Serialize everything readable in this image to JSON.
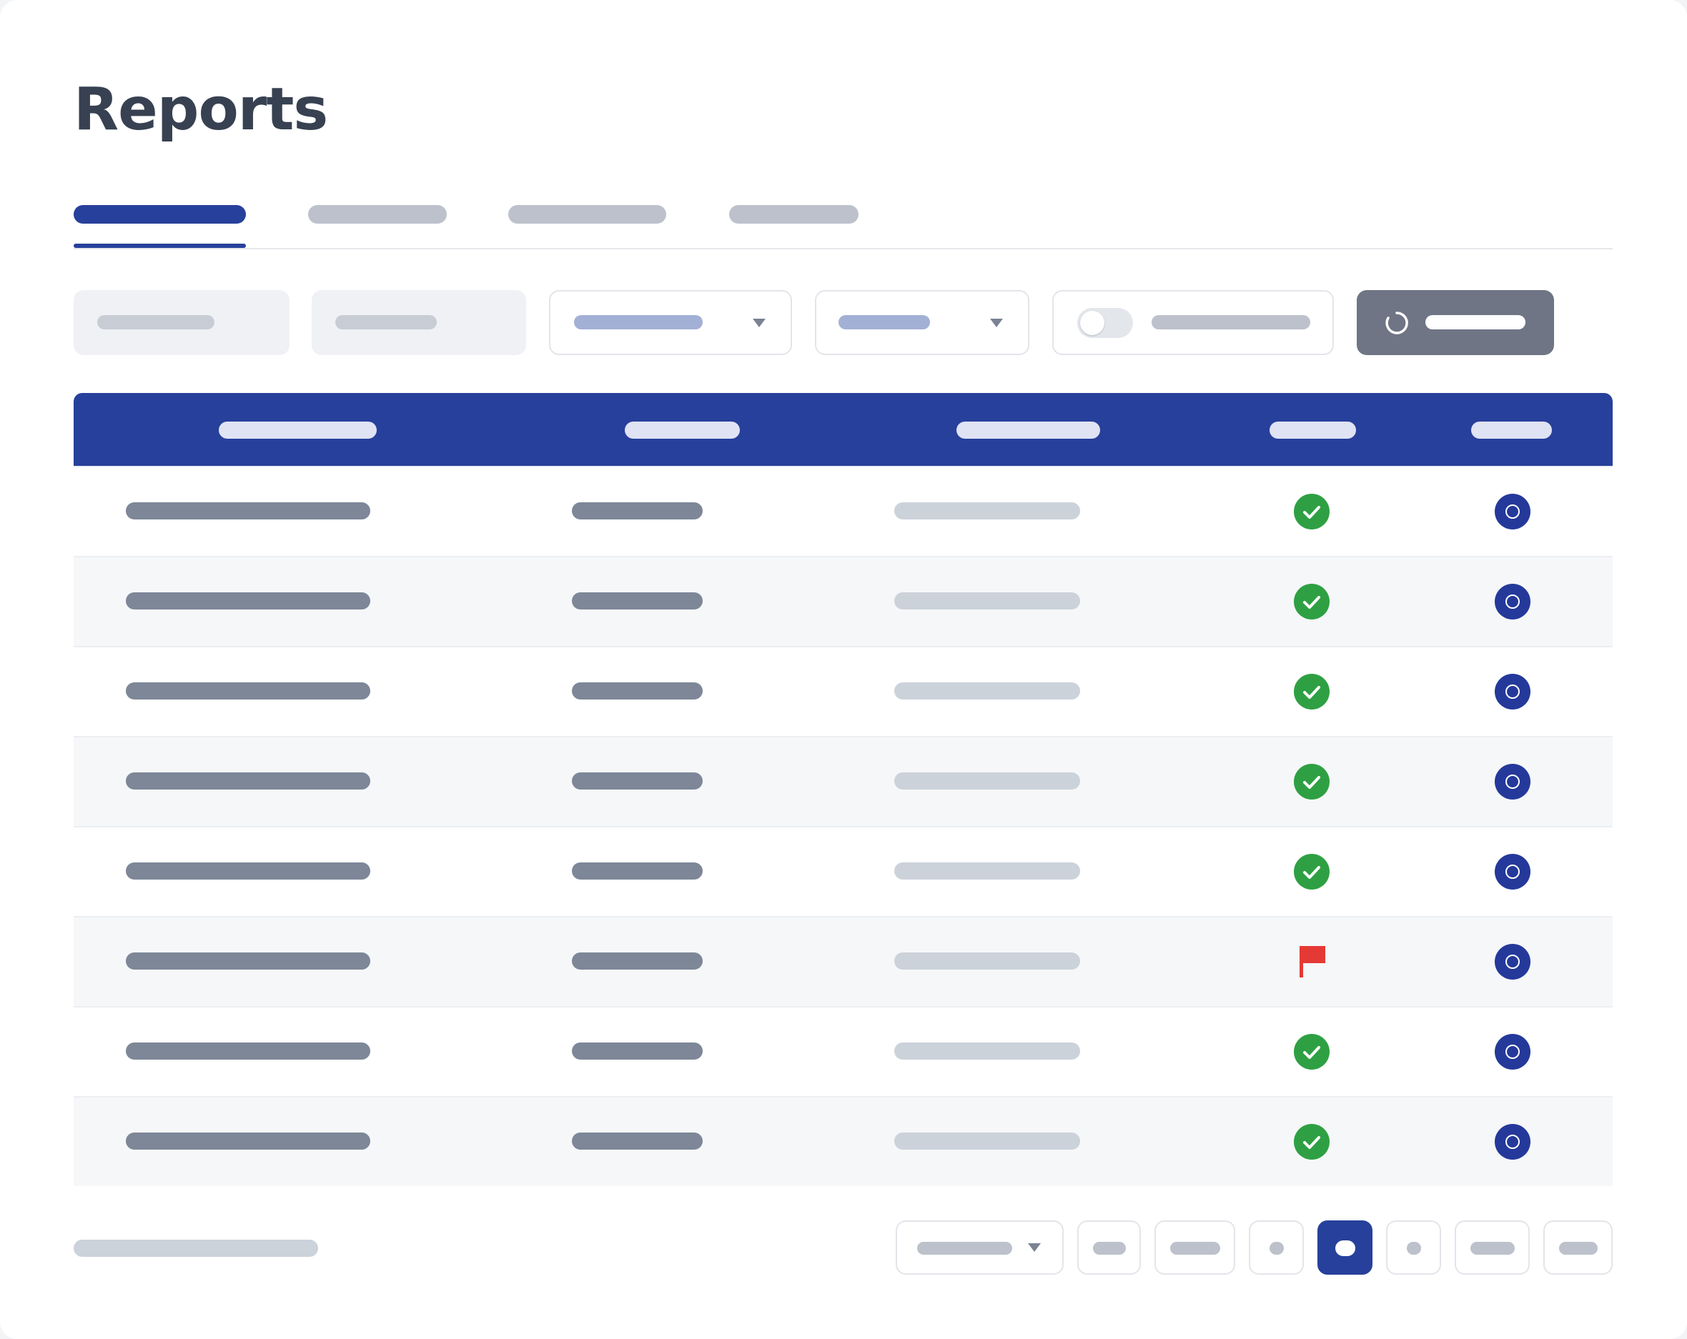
{
  "page": {
    "title": "Reports"
  },
  "tabs": [
    {
      "id": "tab-1",
      "active": true
    },
    {
      "id": "tab-2",
      "active": false
    },
    {
      "id": "tab-3",
      "active": false
    },
    {
      "id": "tab-4",
      "active": false
    }
  ],
  "filters": {
    "toggle_on": false
  },
  "table": {
    "columns": 5,
    "rows": [
      {
        "status": "ok"
      },
      {
        "status": "ok"
      },
      {
        "status": "ok"
      },
      {
        "status": "ok"
      },
      {
        "status": "ok"
      },
      {
        "status": "flagged"
      },
      {
        "status": "ok"
      },
      {
        "status": "ok"
      }
    ]
  },
  "pagination": {
    "active_page_index": 3
  },
  "colors": {
    "brand": "#27409b",
    "success": "#2ea043",
    "flag": "#e53935",
    "text_heading": "#374151"
  },
  "icons": {
    "status_ok": "check-circle-icon",
    "status_flagged": "flag-icon",
    "row_action": "circle-icon",
    "refresh": "refresh-icon",
    "dropdown": "chevron-down-icon"
  }
}
